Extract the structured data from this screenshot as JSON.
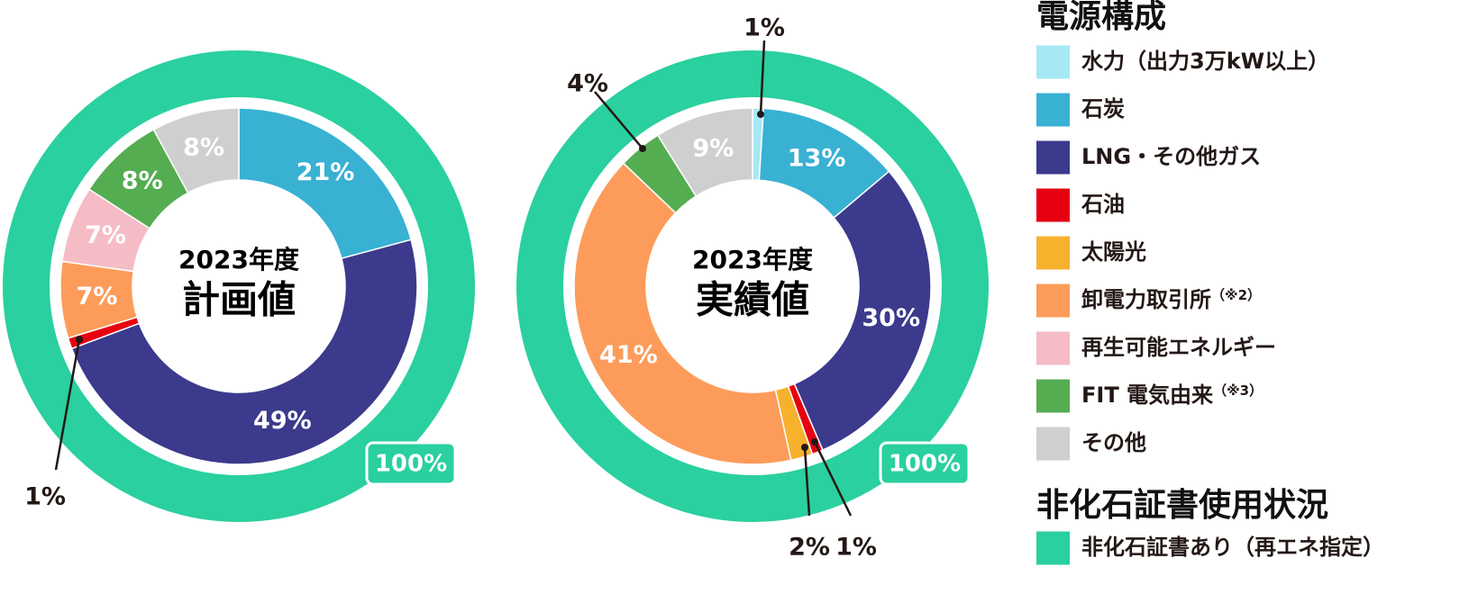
{
  "chart_data": [
    {
      "type": "donut",
      "id": "plan",
      "center_year": "2023年度",
      "center_title": "計画値",
      "categories": [
        "石炭",
        "LNG・その他ガス",
        "石油",
        "卸電力取引所",
        "再生可能エネルギー",
        "FIT 電気由来",
        "その他"
      ],
      "values": [
        21,
        49,
        1,
        7,
        7,
        8,
        8
      ],
      "labels": [
        "21%",
        "49%",
        "1%",
        "7%",
        "7%",
        "8%",
        "8%"
      ],
      "outer_ring": {
        "category": "非化石証書あり（再エネ指定）",
        "value": 100,
        "label": "100%"
      }
    },
    {
      "type": "donut",
      "id": "actual",
      "center_year": "2023年度",
      "center_title": "実績値",
      "categories": [
        "水力（出力3万kW以上）",
        "石炭",
        "LNG・その他ガス",
        "石油",
        "太陽光",
        "卸電力取引所",
        "FIT 電気由来",
        "その他"
      ],
      "values": [
        1,
        13,
        30,
        1,
        2,
        41,
        4,
        9
      ],
      "labels": [
        "1%",
        "13%",
        "30%",
        "1%",
        "2%",
        "41%",
        "4%",
        "9%"
      ],
      "outer_ring": {
        "category": "非化石証書あり（再エネ指定）",
        "value": 100,
        "label": "100%"
      }
    }
  ],
  "colors": {
    "水力（出力3万kW以上）": "#a6e8f5",
    "石炭": "#38b1d3",
    "LNG・その他ガス": "#3b3a8c",
    "石油": "#e60012",
    "太陽光": "#f6b12d",
    "卸電力取引所": "#fd9c5a",
    "再生可能エネルギー": "#f5bcc6",
    "FIT 電気由来": "#55ad52",
    "その他": "#cfcfcf",
    "非化石証書あり（再エネ指定）": "#2ad09f"
  },
  "legend": {
    "power_title": "電源構成",
    "power_items": [
      {
        "key": "水力（出力3万kW以上）",
        "label": "水力（出力3万kW以上）",
        "note": ""
      },
      {
        "key": "石炭",
        "label": "石炭",
        "note": ""
      },
      {
        "key": "LNG・その他ガス",
        "label": "LNG・その他ガス",
        "note": ""
      },
      {
        "key": "石油",
        "label": "石油",
        "note": ""
      },
      {
        "key": "太陽光",
        "label": "太陽光",
        "note": ""
      },
      {
        "key": "卸電力取引所",
        "label": "卸電力取引所",
        "note": "（※2）"
      },
      {
        "key": "再生可能エネルギー",
        "label": "再生可能エネルギー",
        "note": ""
      },
      {
        "key": "FIT 電気由来",
        "label": "FIT 電気由来",
        "note": "（※3）"
      },
      {
        "key": "その他",
        "label": "その他",
        "note": ""
      }
    ],
    "cert_title": "非化石証書使用状況",
    "cert_items": [
      {
        "key": "非化石証書あり（再エネ指定）",
        "label": "非化石証書あり（再エネ指定）",
        "note": ""
      }
    ]
  }
}
